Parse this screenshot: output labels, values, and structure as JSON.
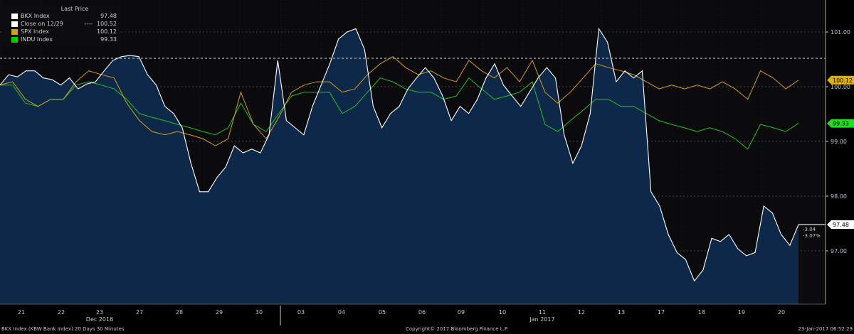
{
  "chart_data": {
    "type": "area",
    "title": "",
    "legend_title": "Last Price",
    "legend_placement": "top-left",
    "x_tick_labels": [
      "21",
      "22",
      "23",
      "27",
      "28",
      "29",
      "30",
      "03",
      "04",
      "05",
      "06",
      "09",
      "10",
      "11",
      "12",
      "13",
      "17",
      "18",
      "19",
      "20"
    ],
    "x_group_labels": [
      "Dec 2016",
      "Jan 2017"
    ],
    "y_ticks": [
      "101.00",
      "100.00",
      "99.00",
      "98.00",
      "97.00"
    ],
    "ylim": [
      95.9,
      101.6
    ],
    "grid": true,
    "reference_line": {
      "name": "Close on 12/29",
      "value": 100.52
    },
    "change_labels": [
      "-3.04",
      "-3.07%"
    ],
    "series": [
      {
        "name": "BKX Index",
        "last": "97.48",
        "color": "#ffffff",
        "fill": "#0d2848",
        "values": [
          100.03,
          100.22,
          100.18,
          100.29,
          100.29,
          100.16,
          100.13,
          100.03,
          100.16,
          99.96,
          100.05,
          100.09,
          100.29,
          100.48,
          100.55,
          100.57,
          100.55,
          100.22,
          100.03,
          99.64,
          99.51,
          99.25,
          98.6,
          98.08,
          98.08,
          98.34,
          98.53,
          98.92,
          98.79,
          98.86,
          98.79,
          99.12,
          100.48,
          99.38,
          99.25,
          99.12,
          99.64,
          100.03,
          100.42,
          100.87,
          101.0,
          101.06,
          100.68,
          99.64,
          99.25,
          99.51,
          99.64,
          99.96,
          100.16,
          100.35,
          100.16,
          99.83,
          99.38,
          99.64,
          99.51,
          99.77,
          100.16,
          100.42,
          100.03,
          99.83,
          99.64,
          99.9,
          100.16,
          100.35,
          100.16,
          99.12,
          98.6,
          98.92,
          99.51,
          101.06,
          100.81,
          100.09,
          100.29,
          100.16,
          100.29,
          98.08,
          97.82,
          97.3,
          96.97,
          96.84,
          96.45,
          96.65,
          97.23,
          97.17,
          97.3,
          97.04,
          96.91,
          96.97,
          97.82,
          97.69,
          97.3,
          97.1,
          97.48
        ]
      },
      {
        "name": "SPX Index",
        "last": "100.12",
        "color": "#d4a017",
        "values": [
          100.03,
          100.09,
          99.77,
          99.64,
          99.77,
          99.77,
          100.09,
          100.29,
          100.22,
          100.16,
          99.7,
          99.38,
          99.18,
          99.12,
          99.18,
          99.12,
          99.05,
          98.92,
          99.05,
          99.9,
          99.31,
          99.05,
          99.44,
          99.9,
          100.03,
          100.09,
          100.09,
          99.9,
          99.96,
          100.22,
          100.42,
          100.55,
          100.35,
          100.22,
          100.29,
          100.16,
          100.09,
          100.48,
          100.29,
          100.16,
          100.35,
          100.09,
          100.48,
          99.9,
          99.7,
          99.9,
          100.16,
          100.42,
          100.35,
          100.29,
          100.22,
          100.09,
          99.96,
          100.03,
          99.96,
          100.03,
          99.96,
          100.09,
          99.96,
          99.77,
          100.29,
          100.16,
          99.96,
          100.12
        ]
      },
      {
        "name": "INDU Index",
        "last": "99.33",
        "color": "#22c522",
        "values": [
          100.03,
          100.03,
          99.7,
          99.64,
          99.77,
          99.77,
          100.03,
          100.09,
          100.03,
          99.96,
          99.77,
          99.51,
          99.44,
          99.38,
          99.31,
          99.25,
          99.18,
          99.12,
          99.25,
          99.7,
          99.31,
          99.18,
          99.51,
          99.83,
          99.9,
          99.9,
          99.9,
          99.51,
          99.64,
          99.9,
          100.16,
          100.09,
          99.96,
          99.9,
          99.9,
          99.77,
          99.83,
          100.16,
          99.96,
          99.77,
          99.83,
          99.9,
          100.09,
          99.31,
          99.18,
          99.38,
          99.57,
          99.77,
          99.77,
          99.64,
          99.64,
          99.51,
          99.38,
          99.31,
          99.25,
          99.18,
          99.25,
          99.18,
          99.05,
          98.86,
          99.31,
          99.25,
          99.18,
          99.33
        ]
      }
    ]
  },
  "legend": {
    "close_label": "Close on 12/29",
    "close_value": "100.52"
  },
  "footer": {
    "left": "BKX Index (KBW Bank Index) 20 Days 30 Minutes",
    "center": "Copyright© 2017 Bloomberg Finance L.P.",
    "right": "23-Jan-2017 06:52:29"
  }
}
